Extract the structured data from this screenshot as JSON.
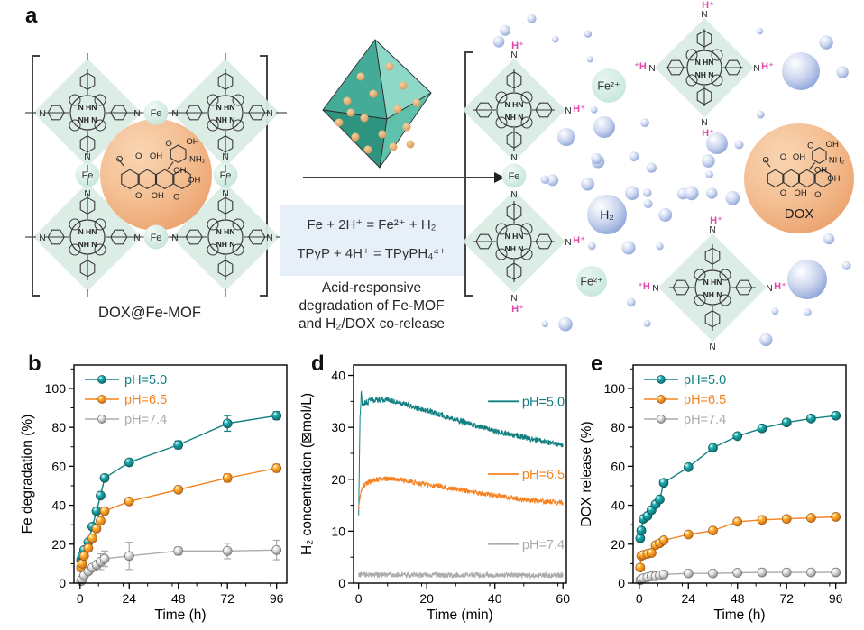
{
  "figure": {
    "panels": {
      "a": {
        "letter": "a",
        "left_unit_label": "DOX@Fe-MOF",
        "equations": [
          "Fe + 2H⁺ = Fe²⁺ + H₂",
          "TPyP + 4H⁺ = TPyPH₄⁴⁺"
        ],
        "caption_lines": [
          "Acid-responsive",
          "degradation of Fe-MOF",
          "and H₂/DOX co-release"
        ],
        "labels": {
          "fe": "Fe",
          "n": "N",
          "core_top": "N HN",
          "core_bottom": "NH N",
          "fe2plus": "Fe²⁺",
          "h2": "H₂",
          "dox": "DOX",
          "h_plus": "H⁺",
          "plus_h": "⁺H"
        },
        "dox_atom_labels": [
          "O",
          "O",
          "OH",
          "O",
          "OH",
          "NH₂",
          "OH",
          "OH",
          "O",
          "OH",
          "O"
        ],
        "colors": {
          "diamond": "#D9ECE4",
          "fe_node": "#CFE9DF",
          "dox_circle": "#F3BD92",
          "bubble": "#9FB2DF",
          "pink": "#E245AE",
          "equation_box": "#E7F0F8",
          "octahedron_faces": [
            "#43AB97",
            "#8ED8C7",
            "#2E9480",
            "#5FC0AC"
          ],
          "octahedron_dot": "#DF9E60"
        }
      },
      "b": {
        "letter": "b"
      },
      "d": {
        "letter": "d"
      },
      "e": {
        "letter": "e"
      }
    }
  },
  "chart_data": [
    {
      "id": "b",
      "type": "scatter",
      "title": "",
      "xlabel": "Time (h)",
      "ylabel": "Fe degradation (%)",
      "xlim": [
        -3,
        101
      ],
      "ylim": [
        0,
        112
      ],
      "xticks": [
        0,
        24,
        48,
        72,
        96
      ],
      "yticks": [
        0,
        20,
        40,
        60,
        80,
        100
      ],
      "x_minor_step": 12,
      "y_minor_step": 10,
      "grid": false,
      "legend_position": "top-left",
      "x": [
        0.5,
        1,
        2,
        4,
        6,
        8,
        10,
        12,
        24,
        48,
        72,
        96
      ],
      "series": [
        {
          "name": "pH=5.0",
          "color": "#128082",
          "values": [
            12,
            14,
            17,
            21,
            29,
            37,
            45,
            54,
            62,
            71,
            82,
            86
          ],
          "yerr": [
            0,
            0,
            0,
            0,
            0,
            0,
            0,
            0,
            1.5,
            2,
            4,
            2
          ]
        },
        {
          "name": "pH=6.5",
          "color": "#F58220",
          "values": [
            8,
            10,
            14,
            18,
            23,
            28,
            32,
            37,
            42,
            48,
            54,
            59
          ],
          "yerr": [
            0,
            0,
            0,
            0,
            0,
            0,
            0,
            0,
            0,
            1.5,
            2,
            2
          ]
        },
        {
          "name": "pH=7.4",
          "color": "#ABABAB",
          "values": [
            1,
            2,
            4,
            6,
            8,
            9.5,
            11,
            12.5,
            14,
            16.5,
            16.5,
            17
          ],
          "yerr": [
            0,
            0,
            0,
            0,
            0,
            0,
            4,
            4,
            7,
            2,
            4,
            5
          ]
        }
      ]
    },
    {
      "id": "d",
      "type": "line",
      "title": "",
      "xlabel": "Time (min)",
      "ylabel": "H₂ concentration (⊠mol/L)",
      "xlim": [
        -1.5,
        61
      ],
      "ylim": [
        0,
        42
      ],
      "xticks": [
        0,
        20,
        40,
        60
      ],
      "yticks": [
        0,
        10,
        20,
        30,
        40
      ],
      "x_minor_step": 10,
      "y_minor_step": 5,
      "grid": false,
      "legend_position": "inline-right",
      "series": [
        {
          "name": "pH=5.0",
          "color": "#128082",
          "noise": 0.55,
          "label_y": 35,
          "keypoints": [
            [
              0,
              13
            ],
            [
              0.4,
              32
            ],
            [
              0.8,
              37.3
            ],
            [
              1.1,
              34.2
            ],
            [
              2,
              34.8
            ],
            [
              4,
              35.2
            ],
            [
              7,
              35.4
            ],
            [
              10,
              35.1
            ],
            [
              13,
              34.6
            ],
            [
              16,
              34
            ],
            [
              20,
              33.2
            ],
            [
              25,
              32.2
            ],
            [
              30,
              31.2
            ],
            [
              35,
              30.2
            ],
            [
              40,
              29.3
            ],
            [
              45,
              28.6
            ],
            [
              50,
              27.9
            ],
            [
              55,
              27.2
            ],
            [
              60,
              26.6
            ]
          ]
        },
        {
          "name": "pH=6.5",
          "color": "#F58220",
          "noise": 0.5,
          "label_y": 21,
          "keypoints": [
            [
              0,
              14.5
            ],
            [
              0.6,
              17.5
            ],
            [
              1.5,
              18.8
            ],
            [
              3,
              19.5
            ],
            [
              5,
              19.9
            ],
            [
              8,
              20.1
            ],
            [
              11,
              20.1
            ],
            [
              14,
              19.7
            ],
            [
              17,
              19.3
            ],
            [
              20,
              19
            ],
            [
              24,
              18.6
            ],
            [
              28,
              18.2
            ],
            [
              32,
              17.7
            ],
            [
              36,
              17.3
            ],
            [
              40,
              16.9
            ],
            [
              44,
              16.5
            ],
            [
              48,
              16.1
            ],
            [
              52,
              15.9
            ],
            [
              56,
              15.7
            ],
            [
              60,
              15.5
            ]
          ]
        },
        {
          "name": "pH=7.4",
          "color": "#ABABAB",
          "noise": 0.5,
          "label_y": 7.5,
          "keypoints": [
            [
              0,
              1.6
            ],
            [
              60,
              1.5
            ]
          ]
        }
      ]
    },
    {
      "id": "e",
      "type": "scatter",
      "title": "",
      "xlabel": "Time (h)",
      "ylabel": "DOX release (%)",
      "xlim": [
        -3,
        101
      ],
      "ylim": [
        0,
        112
      ],
      "xticks": [
        0,
        24,
        48,
        72,
        96
      ],
      "yticks": [
        0,
        20,
        40,
        60,
        80,
        100
      ],
      "x_minor_step": 12,
      "y_minor_step": 10,
      "grid": false,
      "legend_position": "top-left",
      "x": [
        0.5,
        1,
        2,
        4,
        6,
        8,
        10,
        12,
        24,
        36,
        48,
        60,
        72,
        84,
        96
      ],
      "series": [
        {
          "name": "pH=5.0",
          "color": "#128082",
          "values": [
            23,
            27,
            33,
            34.5,
            37.5,
            40.5,
            43,
            51.5,
            59.5,
            69.5,
            75.5,
            79.5,
            82.5,
            84.5,
            86
          ]
        },
        {
          "name": "pH=6.5",
          "color": "#F58220",
          "values": [
            8,
            14,
            14.5,
            15,
            15.5,
            19.5,
            20.5,
            22,
            25,
            27,
            31.5,
            32.5,
            33,
            33.5,
            34
          ]
        },
        {
          "name": "pH=7.4",
          "color": "#ABABAB",
          "values": [
            1.5,
            2,
            2.5,
            3,
            3.5,
            3.5,
            4,
            4.5,
            5,
            5,
            5.3,
            5.5,
            5.5,
            5.5,
            5.5
          ]
        }
      ]
    }
  ]
}
